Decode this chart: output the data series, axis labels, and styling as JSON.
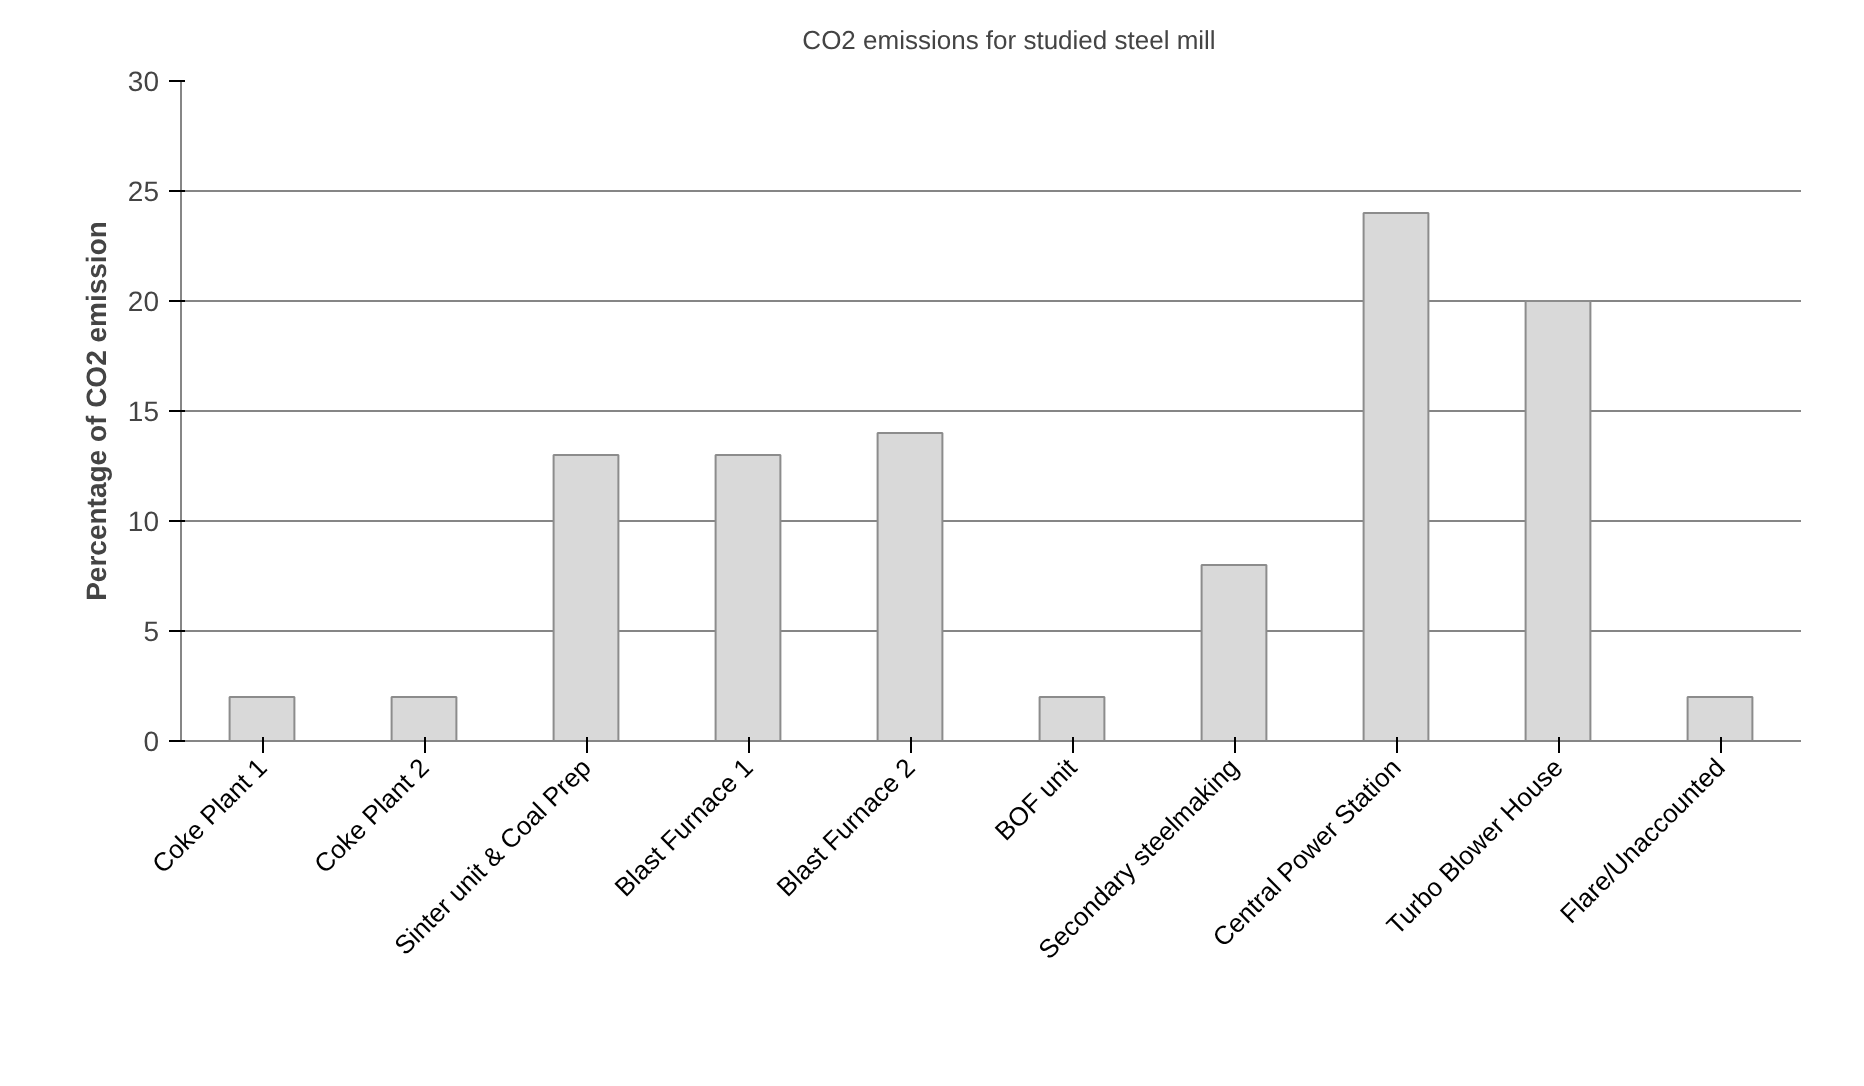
{
  "chart_data": {
    "type": "bar",
    "ylabel": "Percentage of CO2 emission",
    "categories": [
      "Coke Plant 1",
      "Coke Plant 2",
      "Sinter unit & Coal Prep",
      "Blast Furnace 1",
      "Blast Furnace 2",
      "BOF unit",
      "Secondary steelmaking",
      "Central Power Station",
      "Turbo Blower House",
      "Flare/Unaccounted"
    ],
    "series": [
      {
        "name": "CO2 emissions for studied steel mill",
        "color": "#d9d9d9",
        "values": [
          2,
          2,
          13,
          13,
          14,
          2,
          8,
          24,
          20,
          2
        ]
      }
    ],
    "ylim": [
      0,
      30
    ],
    "yticks": [
      0,
      5,
      10,
      15,
      20,
      25,
      30
    ],
    "grid": "y",
    "legend": "top"
  }
}
